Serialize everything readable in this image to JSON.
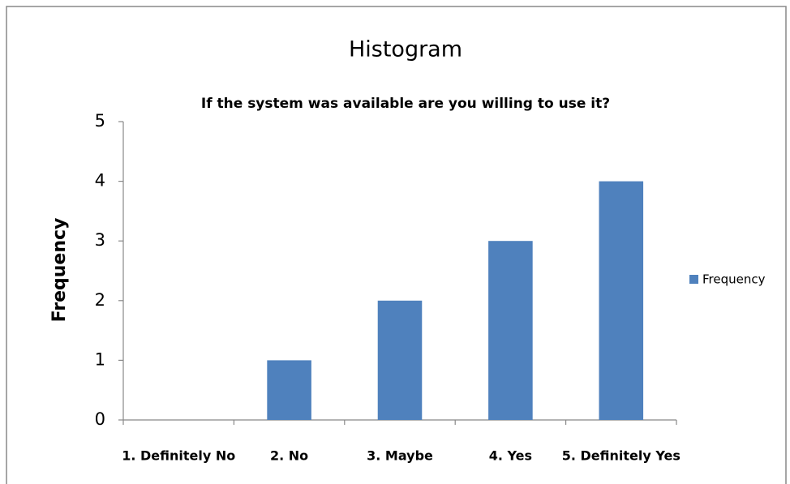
{
  "chart_data": {
    "type": "bar",
    "title": "Histogram",
    "subtitle": "If the system was available are you willing to use it?",
    "y_label": "Frequency",
    "categories": [
      "1. Definitely No",
      "2. No",
      "3. Maybe",
      "4. Yes",
      "5. Definitely Yes"
    ],
    "series": [
      {
        "name": "Frequency",
        "color": "#4f81bd",
        "values": [
          0,
          1,
          2,
          3,
          4
        ]
      }
    ],
    "ylim": [
      0,
      5
    ],
    "yticks": [
      0,
      1,
      2,
      3,
      4,
      5
    ],
    "grid": false,
    "legend": "right"
  }
}
